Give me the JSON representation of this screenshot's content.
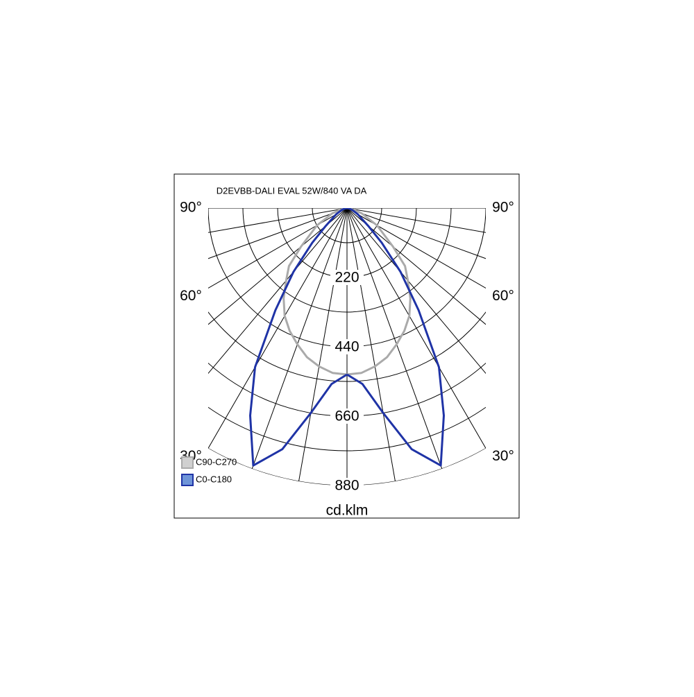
{
  "chart_data": {
    "type": "polar",
    "title": "D2EVBB-DALI EVAL 52W/840 VA DA",
    "rlabel": "cd.klm",
    "rlim": [
      0,
      880
    ],
    "rticks": [
      220,
      440,
      660,
      880
    ],
    "rgrid": [
      110,
      220,
      330,
      440,
      550,
      660,
      770,
      880
    ],
    "thetagrid": [
      0,
      10,
      20,
      30,
      40,
      50,
      60,
      70,
      80,
      90
    ],
    "thetaticks": [
      {
        "value": 90,
        "label": "90°"
      },
      {
        "value": 60,
        "label": "60°"
      },
      {
        "value": 30,
        "label": "30°"
      }
    ],
    "theta": [
      0,
      5,
      10,
      15,
      20,
      25,
      30,
      35,
      40,
      45,
      50,
      60,
      70,
      80,
      90
    ],
    "series": [
      {
        "name": "C90-C270",
        "color": "#aaaaaa",
        "fill": "#d0d0d0",
        "values": [
          528,
          525,
          510,
          490,
          460,
          430,
          395,
          350,
          300,
          260,
          190,
          110,
          50,
          15,
          0
        ]
      },
      {
        "name": "C0-C180",
        "color": "#1f33a6",
        "fill": "#6f95d8",
        "values": [
          528,
          560,
          660,
          792,
          869,
          726,
          583,
          396,
          264,
          156,
          88,
          40,
          18,
          7,
          0
        ]
      }
    ],
    "legend": "lower-left"
  }
}
